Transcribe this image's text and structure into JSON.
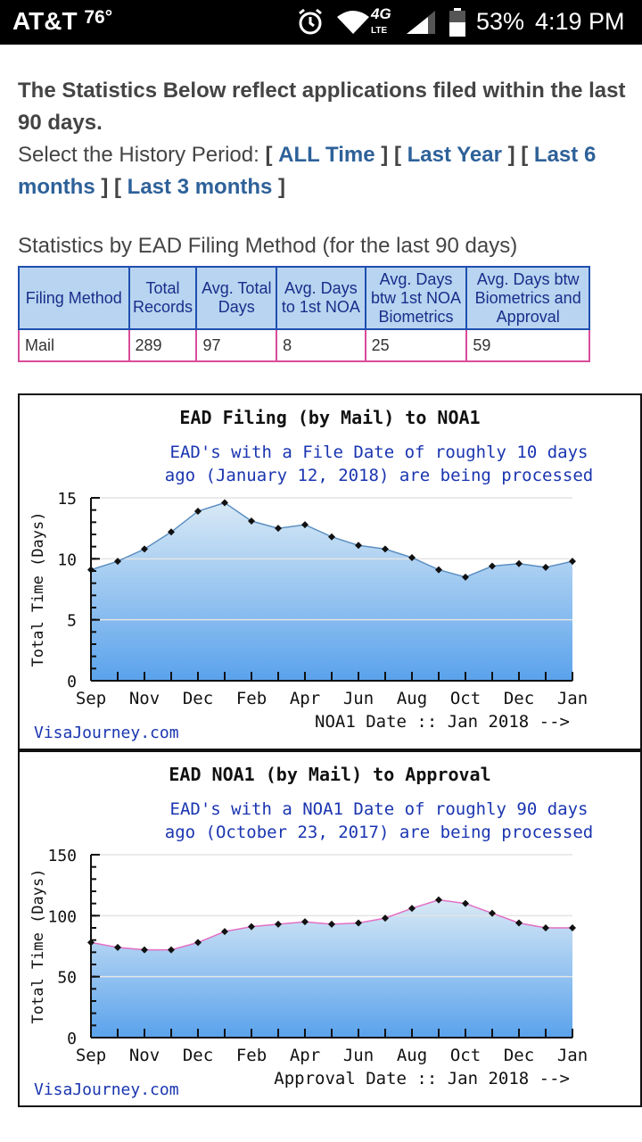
{
  "status_bar": {
    "carrier": "AT&T",
    "temperature": "76°",
    "network": "4G",
    "network_sub": "LTE",
    "battery": "53%",
    "time": "4:19 PM"
  },
  "intro": {
    "headline": "The Statistics Below reflect applications filed within the last 90 days.",
    "period_label": "Select the History Period:",
    "periods": [
      "ALL Time",
      "Last Year",
      "Last 6 months",
      "Last 3 months"
    ]
  },
  "stats_table": {
    "title": "Statistics by EAD Filing Method (for the last 90 days)",
    "headers": [
      "Filing Method",
      "Total Records",
      "Avg. Total Days",
      "Avg. Days to 1st NOA",
      "Avg. Days btw 1st NOA Biometrics",
      "Avg. Days btw Biometrics and Approval"
    ],
    "rows": [
      [
        "Mail",
        "289",
        "97",
        "8",
        "25",
        "59"
      ]
    ]
  },
  "colors": {
    "link": "#2e6199",
    "header_bg": "#b8d4f0",
    "header_border": "#1f4fb0",
    "cell_border": "#d94b9a",
    "chart_subtitle": "#1a35b0",
    "line1": "#5c8fc0",
    "line2": "#e26fc4"
  },
  "chart_data": [
    {
      "type": "area",
      "title": "EAD Filing (by Mail) to NOA1",
      "subtitle_lines": [
        "EAD's with a File Date of roughly 10 days",
        "ago (January 12, 2018) are being processed"
      ],
      "ylabel": "Total Time (Days)",
      "xlabel": "NOA1 Date :: Jan 2018 -->",
      "watermark": "VisaJourney.com",
      "ylim": [
        0,
        15
      ],
      "yticks": [
        0,
        5,
        10,
        15
      ],
      "xtick_labels": [
        "Sep",
        "Nov",
        "Dec",
        "Feb",
        "Apr",
        "Jun",
        "Aug",
        "Oct",
        "Dec",
        "Jan"
      ],
      "grid": true,
      "values": [
        9.1,
        9.8,
        10.8,
        12.2,
        13.9,
        14.6,
        13.1,
        12.5,
        12.8,
        11.8,
        11.1,
        10.8,
        10.1,
        9.1,
        8.5,
        9.4,
        9.6,
        9.3,
        9.8
      ]
    },
    {
      "type": "area",
      "title": "EAD NOA1 (by Mail) to Approval",
      "subtitle_lines": [
        "EAD's with a NOA1 Date of roughly 90 days",
        "ago (October 23, 2017) are being processed"
      ],
      "ylabel": "Total Time (Days)",
      "xlabel": "Approval Date :: Jan 2018 -->",
      "watermark": "VisaJourney.com",
      "ylim": [
        0,
        150
      ],
      "yticks": [
        0,
        50,
        100,
        150
      ],
      "xtick_labels": [
        "Sep",
        "Nov",
        "Dec",
        "Feb",
        "Apr",
        "Jun",
        "Aug",
        "Oct",
        "Dec",
        "Jan"
      ],
      "grid": true,
      "values": [
        78,
        74,
        72,
        72,
        78,
        87,
        91,
        93,
        95,
        93,
        94,
        98,
        106,
        113,
        110,
        102,
        94,
        90,
        90
      ]
    }
  ]
}
